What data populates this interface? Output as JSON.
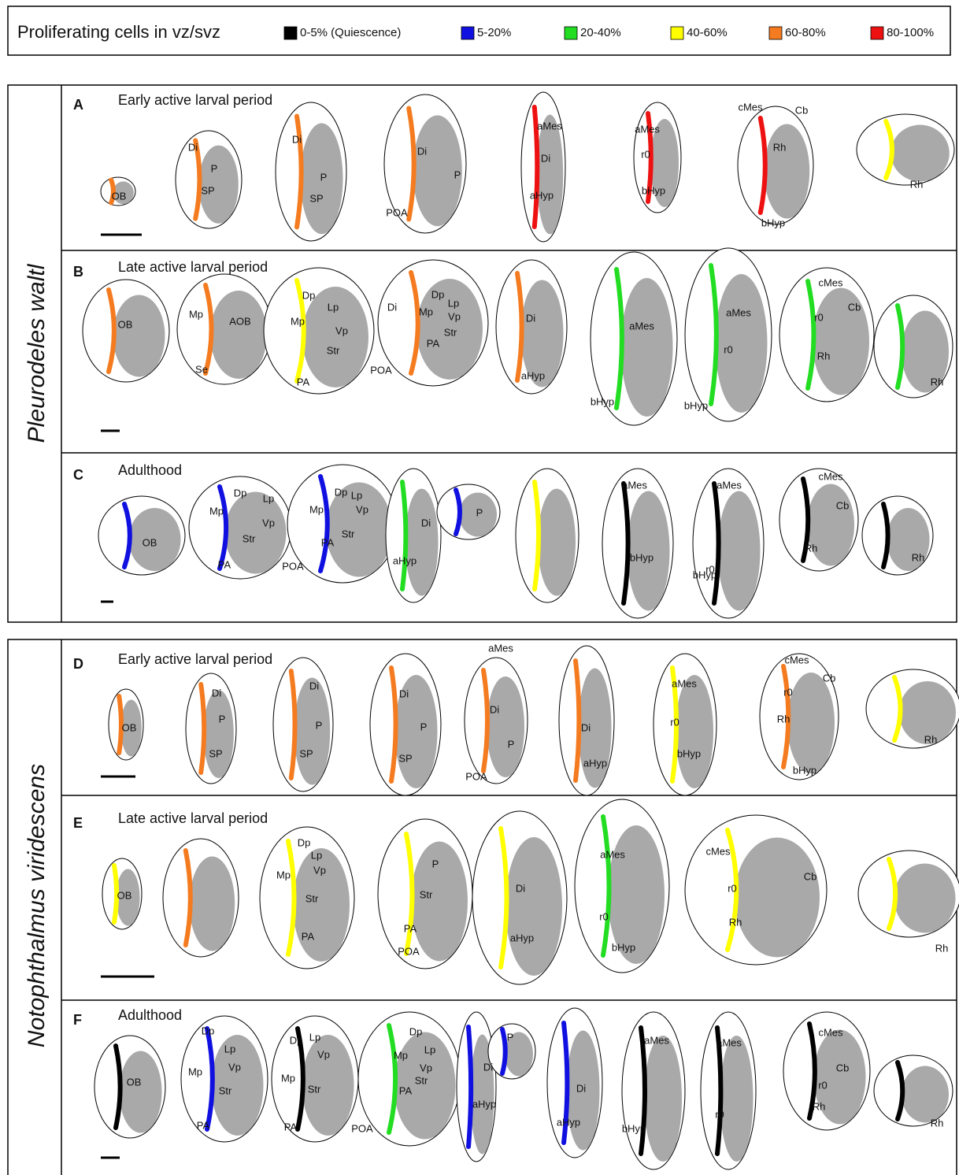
{
  "legend": {
    "title": "Proliferating cells in vz/svz",
    "items": [
      {
        "label": "0-5% (Quiescence)",
        "color": "#000000"
      },
      {
        "label": "5-20%",
        "color": "#1010e0"
      },
      {
        "label": "20-40%",
        "color": "#22dd22"
      },
      {
        "label": "40-60%",
        "color": "#ffff00"
      },
      {
        "label": "60-80%",
        "color": "#f47b20"
      },
      {
        "label": "80-100%",
        "color": "#ee1111"
      }
    ]
  },
  "species": [
    {
      "name": "Pleurodeles waltl",
      "rows": [
        {
          "letter": "A",
          "title": "Early active larval period",
          "labels": [
            "OB",
            "Di",
            "P",
            "SP",
            "Di",
            "P",
            "SP",
            "Di",
            "P",
            "POA",
            "aMes",
            "Di",
            "aHyp",
            "aMes",
            "r0",
            "bHyp",
            "cMes",
            "Cb",
            "Rh",
            "bHyp",
            "Rh"
          ]
        },
        {
          "letter": "B",
          "title": "Late active larval period",
          "labels": [
            "OB",
            "Mp",
            "AOB",
            "Se",
            "Dp",
            "Lp",
            "Mp",
            "Vp",
            "Str",
            "PA",
            "Di",
            "Dp",
            "Lp",
            "Mp",
            "Vp",
            "Str",
            "PA",
            "POA",
            "Di",
            "aHyp",
            "aMes",
            "bHyp",
            "aMes",
            "r0",
            "bHyp",
            "cMes",
            "Cb",
            "r0",
            "Rh",
            "Rh"
          ]
        },
        {
          "letter": "C",
          "title": "Adulthood",
          "labels": [
            "OB",
            "Dp",
            "Lp",
            "Mp",
            "Vp",
            "Str",
            "PA",
            "Dp",
            "Lp",
            "Mp",
            "Vp",
            "Str",
            "PA",
            "POA",
            "Di",
            "aHyp",
            "P",
            "aMes",
            "bHyp",
            "aMes",
            "r0",
            "bHyp",
            "cMes",
            "Cb",
            "Rh",
            "Rh"
          ]
        }
      ]
    },
    {
      "name": "Notophthalmus viridescens",
      "rows": [
        {
          "letter": "D",
          "title": "Early active larval period",
          "labels": [
            "aMes",
            "OB",
            "Di",
            "P",
            "SP",
            "Di",
            "P",
            "SP",
            "Di",
            "P",
            "SP",
            "Di",
            "P",
            "POA",
            "Di",
            "aHyp",
            "aMes",
            "r0",
            "bHyp",
            "cMes",
            "Cb",
            "r0",
            "Rh",
            "bHyp",
            "Rh"
          ]
        },
        {
          "letter": "E",
          "title": "Late active larval period",
          "labels": [
            "OB",
            "Dp",
            "Lp",
            "Vp",
            "Mp",
            "Str",
            "PA",
            "P",
            "Str",
            "PA",
            "POA",
            "Di",
            "aHyp",
            "aMes",
            "r0",
            "bHyp",
            "cMes",
            "r0",
            "Cb",
            "Rh",
            "Rh"
          ]
        },
        {
          "letter": "F",
          "title": "Adulthood",
          "labels": [
            "OB",
            "Dp",
            "Lp",
            "Mp",
            "Vp",
            "Str",
            "PA",
            "Dp",
            "Lp",
            "Vp",
            "Mp",
            "Str",
            "PA",
            "Dp",
            "Lp",
            "Mp",
            "Vp",
            "Str",
            "PA",
            "POA",
            "P",
            "Di",
            "aHyp",
            "Di",
            "aHyp",
            "aMes",
            "bHyp",
            "aMes",
            "r0",
            "cMes",
            "Cb",
            "r0",
            "Rh",
            "Rh"
          ]
        }
      ]
    }
  ]
}
